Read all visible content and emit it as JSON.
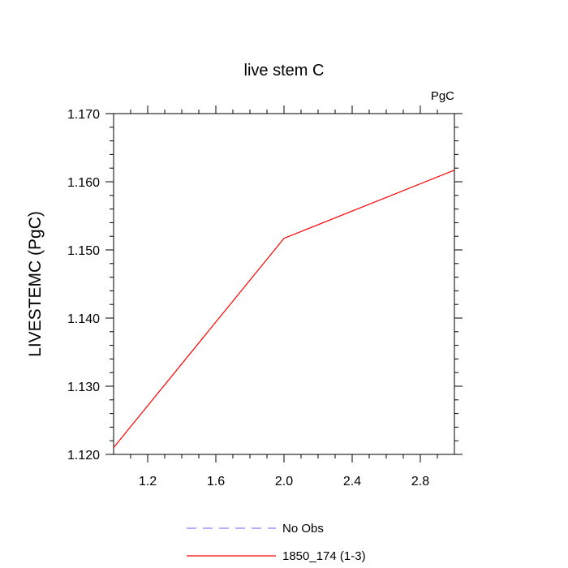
{
  "chart_data": {
    "type": "line",
    "title": "live stem C",
    "units_label": "PgC",
    "ylabel": "LIVESTEMC  (PgC)",
    "xlabel": "",
    "xlim": [
      1.0,
      3.0
    ],
    "ylim": [
      1.12,
      1.17
    ],
    "x_ticks": [
      1.2,
      1.6,
      2.0,
      2.4,
      2.8
    ],
    "x_tick_labels": [
      "1.2",
      "1.6",
      "2.0",
      "2.4",
      "2.8"
    ],
    "y_ticks": [
      1.12,
      1.13,
      1.14,
      1.15,
      1.16,
      1.17
    ],
    "y_tick_labels": [
      "1.120",
      "1.130",
      "1.140",
      "1.150",
      "1.160",
      "1.170"
    ],
    "x": [
      1,
      2,
      3
    ],
    "series": [
      {
        "name": "1850_174 (1-3)",
        "color": "#ff0000",
        "style": "solid",
        "values": [
          1.121,
          1.1517,
          1.1617
        ]
      }
    ],
    "legend": [
      {
        "label": "No Obs",
        "color": "#8080ff",
        "style": "dashed"
      },
      {
        "label": "1850_174 (1-3)",
        "color": "#ff0000",
        "style": "solid"
      }
    ],
    "legend_position": "bottom",
    "grid": false
  }
}
